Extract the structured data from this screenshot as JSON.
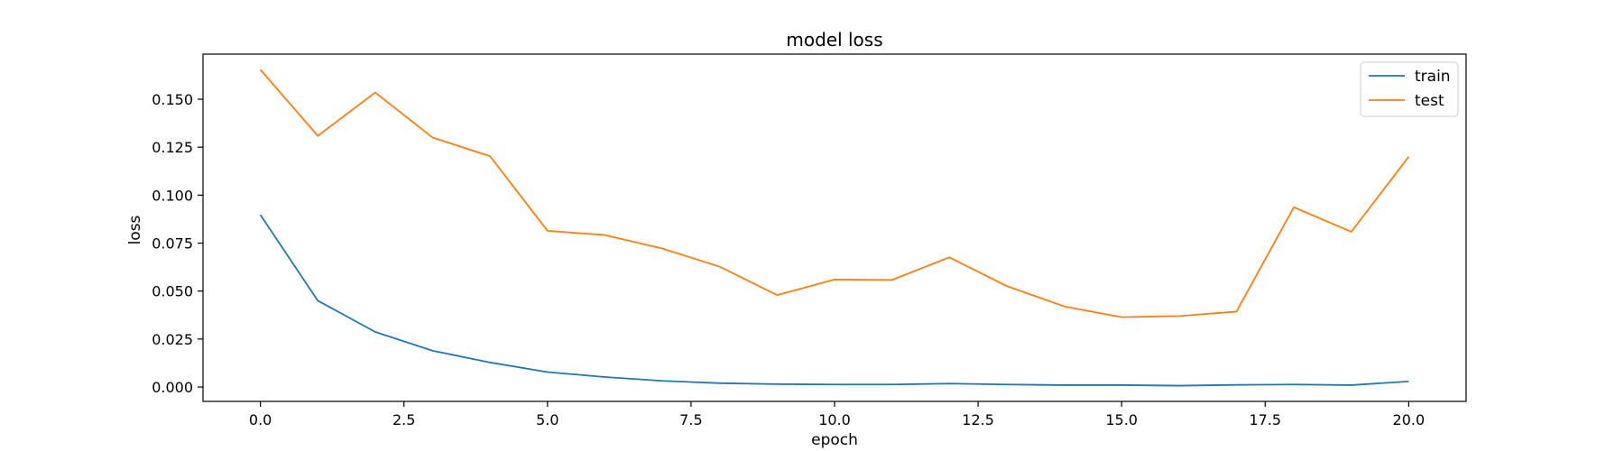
{
  "chart_data": {
    "type": "line",
    "title": "model loss",
    "xlabel": "epoch",
    "ylabel": "loss",
    "xlim": [
      -1.0,
      21.0
    ],
    "ylim": [
      -0.0075,
      0.1735
    ],
    "xticks": [
      0.0,
      2.5,
      5.0,
      7.5,
      10.0,
      12.5,
      15.0,
      17.5,
      20.0
    ],
    "xtick_labels": [
      "0.0",
      "2.5",
      "5.0",
      "7.5",
      "10.0",
      "12.5",
      "15.0",
      "17.5",
      "20.0"
    ],
    "yticks": [
      0.0,
      0.025,
      0.05,
      0.075,
      0.1,
      0.125,
      0.15
    ],
    "ytick_labels": [
      "0.000",
      "0.025",
      "0.050",
      "0.075",
      "0.100",
      "0.125",
      "0.150"
    ],
    "grid": false,
    "legend_position": "top-right",
    "x": [
      0,
      1,
      2,
      3,
      4,
      5,
      6,
      7,
      8,
      9,
      10,
      11,
      12,
      13,
      14,
      15,
      16,
      17,
      18,
      19,
      20
    ],
    "series": [
      {
        "name": "train",
        "color": "#1f77b4",
        "values": [
          0.0897,
          0.045,
          0.0287,
          0.0189,
          0.0128,
          0.0078,
          0.0052,
          0.0032,
          0.002,
          0.0015,
          0.0013,
          0.0013,
          0.0018,
          0.0013,
          0.001,
          0.001,
          0.0007,
          0.0011,
          0.0013,
          0.001,
          0.0029
        ]
      },
      {
        "name": "test",
        "color": "#ff7f0e",
        "values": [
          0.1654,
          0.1309,
          0.1535,
          0.13,
          0.1203,
          0.0814,
          0.0792,
          0.0722,
          0.0627,
          0.0479,
          0.056,
          0.0558,
          0.0676,
          0.0526,
          0.042,
          0.0364,
          0.037,
          0.0393,
          0.0937,
          0.0809,
          0.12
        ]
      }
    ]
  }
}
